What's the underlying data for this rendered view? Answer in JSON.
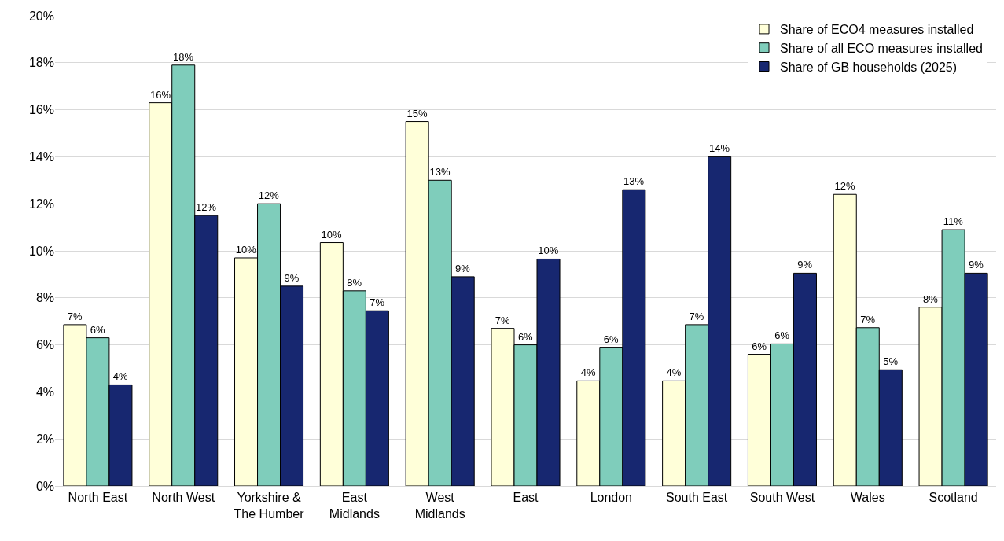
{
  "chart_data": {
    "type": "bar",
    "categories": [
      "North East",
      "North West",
      "Yorkshire & The Humber",
      "East Midlands",
      "West Midlands",
      "East",
      "London",
      "South East",
      "South West",
      "Wales",
      "Scotland"
    ],
    "series": [
      {
        "name": "Share of ECO4 measures installed",
        "color": "#ffffd9",
        "values": [
          6.86,
          16.3,
          9.7,
          10.35,
          15.5,
          6.7,
          4.47,
          4.47,
          5.6,
          12.4,
          7.6
        ],
        "value_labels": [
          "7%",
          "16%",
          "10%",
          "10%",
          "15%",
          "7%",
          "4%",
          "4%",
          "6%",
          "12%",
          "8%"
        ]
      },
      {
        "name": "Share of all ECO measures installed",
        "color": "#7fcdbb",
        "values": [
          6.3,
          17.9,
          12.0,
          8.3,
          13.0,
          6.0,
          5.9,
          6.86,
          6.04,
          6.73,
          10.9
        ],
        "value_labels": [
          "6%",
          "18%",
          "12%",
          "8%",
          "13%",
          "6%",
          "6%",
          "7%",
          "6%",
          "7%",
          "11%"
        ]
      },
      {
        "name": "Share of GB households (2025)",
        "color": "#172770",
        "values": [
          4.3,
          11.5,
          8.5,
          7.45,
          8.9,
          9.65,
          12.6,
          14.0,
          9.05,
          4.94,
          9.05
        ],
        "value_labels": [
          "4%",
          "12%",
          "9%",
          "7%",
          "9%",
          "10%",
          "13%",
          "14%",
          "9%",
          "5%",
          "9%"
        ]
      }
    ],
    "ylim": [
      0,
      20
    ],
    "yticks": [
      {
        "value": 0,
        "label": "0%"
      },
      {
        "value": 2,
        "label": "2%"
      },
      {
        "value": 4,
        "label": "4%"
      },
      {
        "value": 6,
        "label": "6%"
      },
      {
        "value": 8,
        "label": "8%"
      },
      {
        "value": 10,
        "label": "10%"
      },
      {
        "value": 12,
        "label": "12%"
      },
      {
        "value": 14,
        "label": "14%"
      },
      {
        "value": 16,
        "label": "16%"
      },
      {
        "value": 18,
        "label": "18%"
      },
      {
        "value": 20,
        "label": "20%"
      }
    ],
    "grid": "y",
    "legend": "top right"
  }
}
